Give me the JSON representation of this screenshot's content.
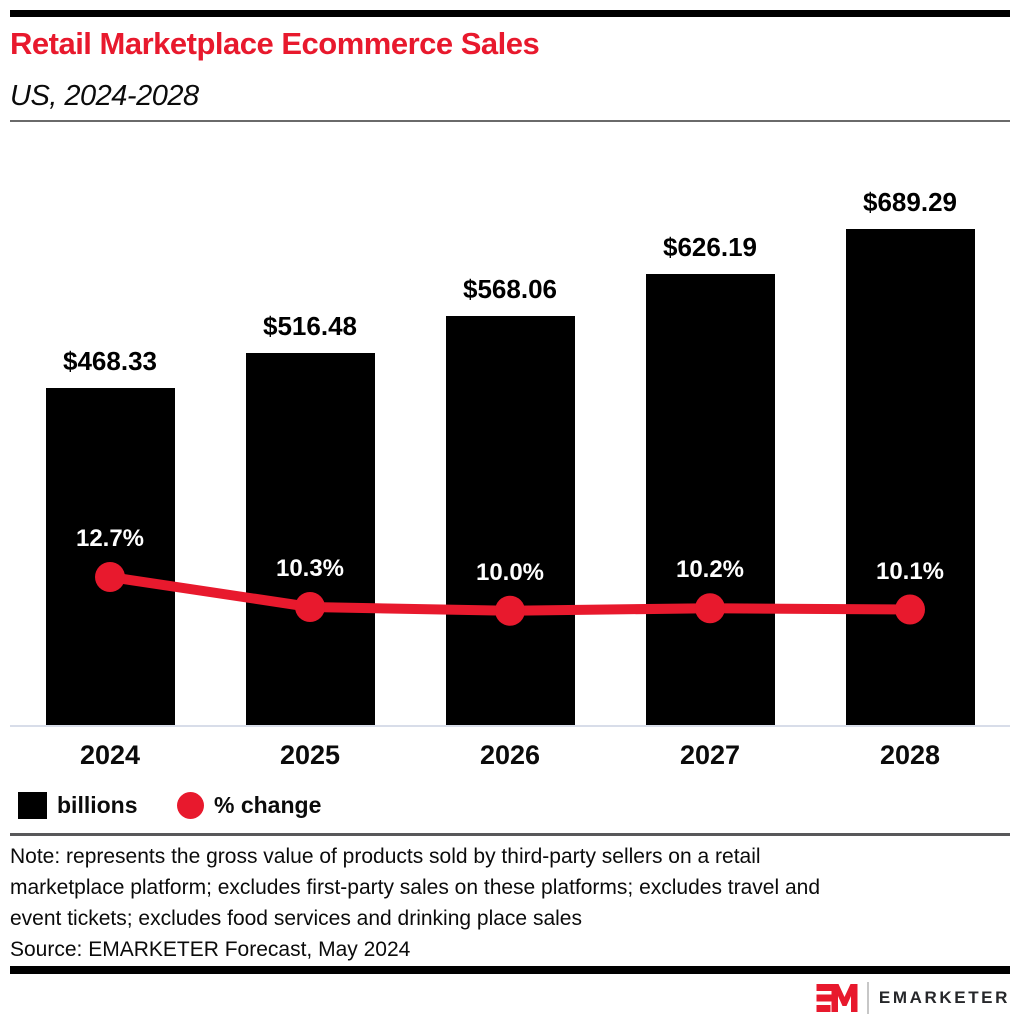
{
  "header": {
    "title": "Retail Marketplace Ecommerce Sales",
    "subtitle": "US, 2024-2028"
  },
  "chart_data": {
    "type": "bar",
    "title": "Retail Marketplace Ecommerce Sales",
    "subtitle": "US, 2024-2028",
    "categories": [
      "2024",
      "2025",
      "2026",
      "2027",
      "2028"
    ],
    "series": [
      {
        "name": "billions",
        "type": "bar",
        "unit": "US$ billions",
        "values": [
          468.33,
          516.48,
          568.06,
          626.19,
          689.29
        ],
        "labels": [
          "$468.33",
          "$516.48",
          "$568.06",
          "$626.19",
          "$689.29"
        ]
      },
      {
        "name": "% change",
        "type": "line",
        "unit": "percent",
        "values": [
          12.7,
          10.3,
          10.0,
          10.2,
          10.1
        ],
        "labels": [
          "12.7%",
          "10.3%",
          "10.0%",
          "10.2%",
          "10.1%"
        ]
      }
    ],
    "legend_position": "bottom-left",
    "grid": false,
    "value_labels_shown": true
  },
  "legend": {
    "items": [
      {
        "label": "billions",
        "swatch": "square",
        "color": "#000000"
      },
      {
        "label": "% change",
        "swatch": "circle",
        "color": "#e8192d"
      }
    ]
  },
  "footer": {
    "note_lines": [
      "Note: represents the gross value of products sold by third-party sellers on a retail",
      "marketplace platform; excludes first-party sales on these platforms; excludes travel and",
      "event tickets; excludes food services and drinking place sales"
    ],
    "source": "Source: EMARKETER Forecast, May 2024"
  },
  "brand": {
    "wordmark": "EMARKETER",
    "monogram": "EM"
  },
  "colors": {
    "accent": "#e8192d",
    "bar": "#000000",
    "baseline": "#d8dde9"
  }
}
